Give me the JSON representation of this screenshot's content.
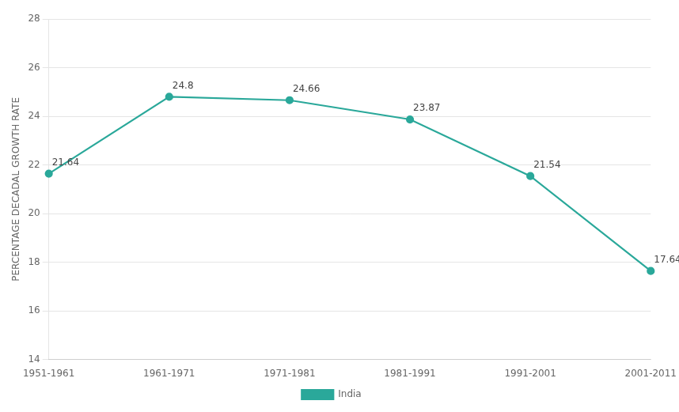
{
  "chart_data": {
    "type": "line",
    "categories": [
      "1951-1961",
      "1961-1971",
      "1971-1981",
      "1981-1991",
      "1991-2001",
      "2001-2011"
    ],
    "series": [
      {
        "name": "India",
        "color": "#2aA89A",
        "values": [
          21.64,
          24.8,
          24.66,
          23.87,
          21.54,
          17.64
        ]
      }
    ],
    "ylabel": "PERCENTAGE DECADAL GROWTH RATE",
    "ylim": [
      14,
      28
    ],
    "yticks": [
      14,
      16,
      18,
      20,
      22,
      24,
      26,
      28
    ],
    "grid": true,
    "legend": "bottom",
    "marker": "circle",
    "data_labels": true
  }
}
